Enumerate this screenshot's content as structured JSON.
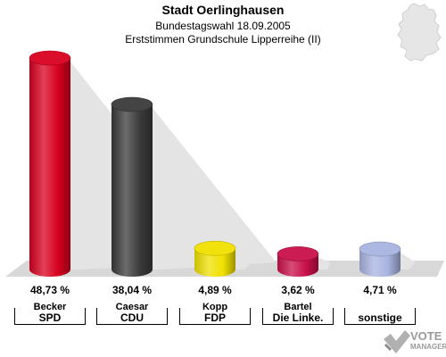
{
  "header": {
    "title": "Stadt Oerlinghausen",
    "subtitle": "Bundestagswahl 18.09.2005",
    "subtitle2": "Erststimmen Grundschule Lipperreihe (II)"
  },
  "logo": {
    "line1": "VOTE",
    "line2": "MANAGER",
    "icon": "vote-check-icon"
  },
  "map": {
    "icon": "germany-map-icon"
  },
  "chart_data": {
    "type": "bar",
    "ylim": [
      0,
      50
    ],
    "categories": [
      "SPD",
      "CDU",
      "FDP",
      "Die Linke.",
      "sonstige"
    ],
    "candidates": [
      "Becker",
      "Caesar",
      "Kopp",
      "Bartel",
      ""
    ],
    "values": [
      48.73,
      38.04,
      4.89,
      3.62,
      4.71
    ],
    "value_labels": [
      "48,73 %",
      "38,04 %",
      "4,89 %",
      "3,62 %",
      "4,71 %"
    ],
    "colors": [
      "#d8001f",
      "#3a3a3a",
      "#f0e000",
      "#c8104a",
      "#a8b4e0"
    ]
  }
}
